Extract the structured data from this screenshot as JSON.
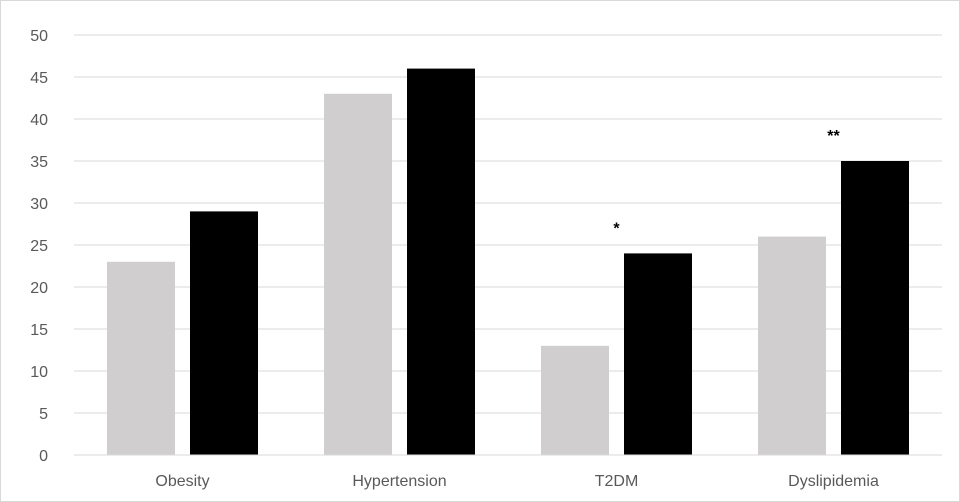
{
  "chart_data": {
    "type": "bar",
    "categories": [
      "Obesity",
      "Hypertension",
      "T2DM",
      "Dyslipidemia"
    ],
    "series": [
      {
        "values": [
          23,
          43,
          13,
          26
        ],
        "color": "#d0cece"
      },
      {
        "values": [
          29,
          46,
          24,
          35
        ],
        "color": "#000000"
      }
    ],
    "ylim": [
      0,
      50
    ],
    "ytick_step": 5,
    "ytick_labels": [
      "0",
      "5",
      "10",
      "15",
      "20",
      "25",
      "30",
      "35",
      "40",
      "45",
      "50"
    ],
    "grid": true,
    "annotations": [
      {
        "category": "T2DM",
        "text": "*"
      },
      {
        "category": "Dyslipidemia",
        "text": "**"
      }
    ]
  }
}
